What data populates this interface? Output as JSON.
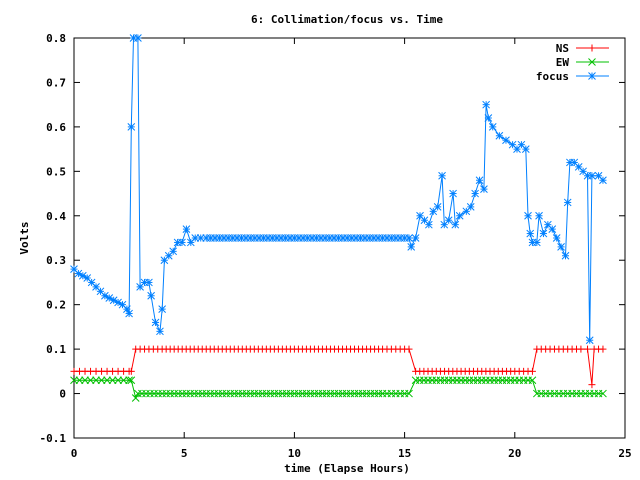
{
  "chart_data": {
    "type": "line",
    "title": "6: Collimation/focus vs. Time",
    "xlabel": "time (Elapse Hours)",
    "ylabel": "Volts",
    "xlim": [
      0,
      25
    ],
    "ylim": [
      -0.1,
      0.8
    ],
    "xticks": [
      "0",
      "5",
      "10",
      "15",
      "20",
      "25"
    ],
    "yticks": [
      "-0.1",
      "0",
      "0.1",
      "0.2",
      "0.3",
      "0.4",
      "0.5",
      "0.6",
      "0.7",
      "0.8"
    ],
    "legend_position": "top-right",
    "grid": false,
    "series": [
      {
        "name": "NS",
        "color": "#ff0000",
        "marker": "plus",
        "points": [
          [
            0,
            0.05
          ],
          [
            0.5,
            0.05
          ],
          [
            1.0,
            0.05
          ],
          [
            1.5,
            0.05
          ],
          [
            2.0,
            0.05
          ],
          [
            2.5,
            0.05
          ],
          [
            2.6,
            0.05
          ],
          [
            2.8,
            0.1
          ],
          [
            4.0,
            0.1
          ],
          [
            6.0,
            0.1
          ],
          [
            8.0,
            0.1
          ],
          [
            10.0,
            0.1
          ],
          [
            12.0,
            0.1
          ],
          [
            14.0,
            0.1
          ],
          [
            15.2,
            0.1
          ],
          [
            15.5,
            0.05
          ],
          [
            17.0,
            0.05
          ],
          [
            18.5,
            0.05
          ],
          [
            20.0,
            0.05
          ],
          [
            20.8,
            0.05
          ],
          [
            21.0,
            0.1
          ],
          [
            22.0,
            0.1
          ],
          [
            23.0,
            0.1
          ],
          [
            23.3,
            0.1
          ],
          [
            23.5,
            0.02
          ],
          [
            23.6,
            0.1
          ],
          [
            24.0,
            0.1
          ]
        ]
      },
      {
        "name": "EW",
        "color": "#00c000",
        "marker": "cross",
        "points": [
          [
            0,
            0.03
          ],
          [
            0.5,
            0.03
          ],
          [
            1.0,
            0.03
          ],
          [
            1.5,
            0.03
          ],
          [
            2.0,
            0.03
          ],
          [
            2.5,
            0.03
          ],
          [
            2.6,
            0.03
          ],
          [
            2.8,
            -0.01
          ],
          [
            2.9,
            0.0
          ],
          [
            4.0,
            0.0
          ],
          [
            6.0,
            0.0
          ],
          [
            8.0,
            0.0
          ],
          [
            10.0,
            0.0
          ],
          [
            12.0,
            0.0
          ],
          [
            14.0,
            0.0
          ],
          [
            15.2,
            0.0
          ],
          [
            15.5,
            0.03
          ],
          [
            17.0,
            0.03
          ],
          [
            18.5,
            0.03
          ],
          [
            20.0,
            0.03
          ],
          [
            20.8,
            0.03
          ],
          [
            21.0,
            0.0
          ],
          [
            22.0,
            0.0
          ],
          [
            23.0,
            0.0
          ],
          [
            23.4,
            0.0
          ],
          [
            23.6,
            0.0
          ],
          [
            24.0,
            0.0
          ]
        ]
      },
      {
        "name": "focus",
        "color": "#0080ff",
        "marker": "star",
        "points": [
          [
            0,
            0.28
          ],
          [
            0.2,
            0.27
          ],
          [
            0.4,
            0.265
          ],
          [
            0.6,
            0.26
          ],
          [
            0.8,
            0.25
          ],
          [
            1.0,
            0.24
          ],
          [
            1.2,
            0.23
          ],
          [
            1.4,
            0.22
          ],
          [
            1.6,
            0.215
          ],
          [
            1.8,
            0.21
          ],
          [
            2.0,
            0.205
          ],
          [
            2.2,
            0.2
          ],
          [
            2.4,
            0.19
          ],
          [
            2.5,
            0.18
          ],
          [
            2.6,
            0.6
          ],
          [
            2.7,
            0.8
          ],
          [
            2.9,
            0.8
          ],
          [
            3.0,
            0.24
          ],
          [
            3.2,
            0.25
          ],
          [
            3.4,
            0.25
          ],
          [
            3.5,
            0.22
          ],
          [
            3.7,
            0.16
          ],
          [
            3.9,
            0.14
          ],
          [
            4.0,
            0.19
          ],
          [
            4.1,
            0.3
          ],
          [
            4.3,
            0.31
          ],
          [
            4.5,
            0.32
          ],
          [
            4.7,
            0.34
          ],
          [
            4.9,
            0.34
          ],
          [
            5.1,
            0.37
          ],
          [
            5.3,
            0.34
          ],
          [
            5.5,
            0.35
          ],
          [
            6.0,
            0.35
          ],
          [
            7.0,
            0.35
          ],
          [
            8.0,
            0.35
          ],
          [
            9.0,
            0.35
          ],
          [
            10.0,
            0.35
          ],
          [
            11.0,
            0.35
          ],
          [
            12.0,
            0.35
          ],
          [
            13.0,
            0.35
          ],
          [
            14.0,
            0.35
          ],
          [
            15.2,
            0.35
          ],
          [
            15.3,
            0.33
          ],
          [
            15.5,
            0.35
          ],
          [
            15.7,
            0.4
          ],
          [
            15.9,
            0.39
          ],
          [
            16.1,
            0.38
          ],
          [
            16.3,
            0.41
          ],
          [
            16.5,
            0.42
          ],
          [
            16.7,
            0.49
          ],
          [
            16.8,
            0.38
          ],
          [
            17.0,
            0.39
          ],
          [
            17.2,
            0.45
          ],
          [
            17.3,
            0.38
          ],
          [
            17.5,
            0.4
          ],
          [
            17.8,
            0.41
          ],
          [
            18.0,
            0.42
          ],
          [
            18.2,
            0.45
          ],
          [
            18.4,
            0.48
          ],
          [
            18.6,
            0.46
          ],
          [
            18.7,
            0.65
          ],
          [
            18.8,
            0.62
          ],
          [
            19.0,
            0.6
          ],
          [
            19.3,
            0.58
          ],
          [
            19.6,
            0.57
          ],
          [
            19.9,
            0.56
          ],
          [
            20.1,
            0.55
          ],
          [
            20.3,
            0.56
          ],
          [
            20.5,
            0.55
          ],
          [
            20.6,
            0.4
          ],
          [
            20.7,
            0.36
          ],
          [
            20.8,
            0.34
          ],
          [
            21.0,
            0.34
          ],
          [
            21.1,
            0.4
          ],
          [
            21.3,
            0.36
          ],
          [
            21.5,
            0.38
          ],
          [
            21.7,
            0.37
          ],
          [
            21.9,
            0.35
          ],
          [
            22.1,
            0.33
          ],
          [
            22.3,
            0.31
          ],
          [
            22.4,
            0.43
          ],
          [
            22.5,
            0.52
          ],
          [
            22.7,
            0.52
          ],
          [
            22.9,
            0.51
          ],
          [
            23.1,
            0.5
          ],
          [
            23.3,
            0.49
          ],
          [
            23.4,
            0.12
          ],
          [
            23.5,
            0.49
          ],
          [
            23.8,
            0.49
          ],
          [
            24.0,
            0.48
          ]
        ]
      }
    ]
  }
}
